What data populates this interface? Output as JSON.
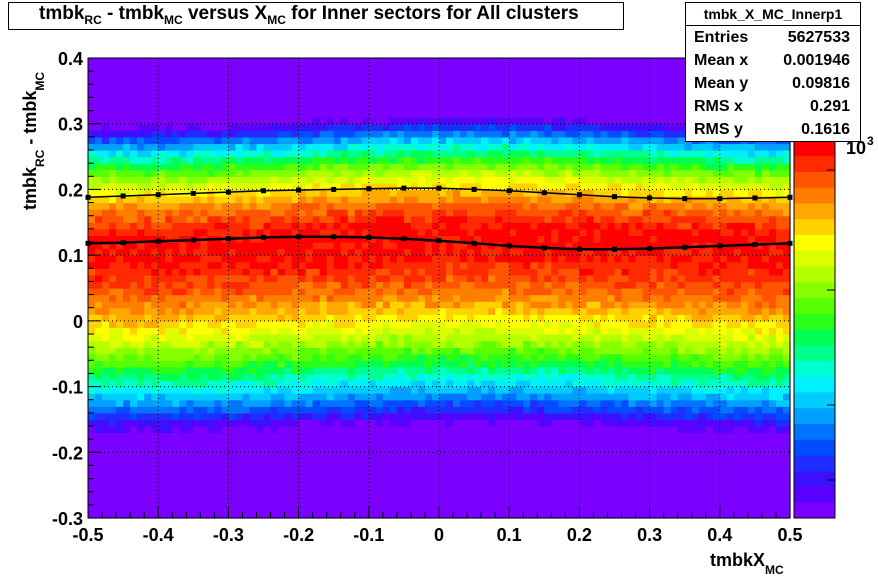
{
  "title": {
    "parts": [
      "tmbk",
      "RC",
      " - tmbk",
      "MC",
      " versus X",
      "MC",
      " for Inner sectors for All clusters"
    ]
  },
  "stats": {
    "name": "tmbk_X_MC_Innerp1",
    "rows": [
      {
        "key": "Entries",
        "value": "5627533"
      },
      {
        "key": "Mean x",
        "value": "0.001946"
      },
      {
        "key": "Mean y",
        "value": "0.09816"
      },
      {
        "key": "RMS x",
        "value": "0.291"
      },
      {
        "key": "RMS y",
        "value": "0.1616"
      }
    ]
  },
  "colorbar": {
    "label_base": "10",
    "label_exp": "3",
    "colors": [
      "#7b00ff",
      "#5a00ff",
      "#3c10ff",
      "#1f2eff",
      "#004cff",
      "#0073ff",
      "#00a0ff",
      "#00ccff",
      "#00f0ff",
      "#00ffd0",
      "#00ff8c",
      "#00ff50",
      "#2aff1a",
      "#58ff00",
      "#86ff00",
      "#b4ff00",
      "#dcff00",
      "#ffff00",
      "#ffd200",
      "#ffa800",
      "#ff7e00",
      "#ff5400",
      "#ff2a00",
      "#ff0000"
    ]
  },
  "chart_data": {
    "type": "heatmap",
    "title": "tmbk_RC - tmbk_MC versus X_MC for Inner sectors for All clusters",
    "xlabel": "tmbkX_MC",
    "ylabel": "tmbk_RC - tmbk_MC",
    "xlim": [
      -0.5,
      0.5
    ],
    "ylim": [
      -0.3,
      0.4
    ],
    "x_ticks": [
      "-0.5",
      "-0.4",
      "-0.3",
      "-0.2",
      "-0.1",
      "0",
      "0.1",
      "0.2",
      "0.3",
      "0.4",
      "0.5"
    ],
    "y_ticks": [
      "-0.3",
      "-0.2",
      "-0.1",
      "0",
      "0.1",
      "0.2",
      "0.3",
      "0.4"
    ],
    "grid": true,
    "z_scale": "log",
    "series": [
      {
        "name": "mean",
        "x": [
          -0.5,
          -0.45,
          -0.4,
          -0.35,
          -0.3,
          -0.25,
          -0.2,
          -0.15,
          -0.1,
          -0.05,
          0,
          0.05,
          0.1,
          0.15,
          0.2,
          0.25,
          0.3,
          0.35,
          0.4,
          0.45,
          0.5
        ],
        "y": [
          0.118,
          0.119,
          0.121,
          0.123,
          0.125,
          0.127,
          0.128,
          0.128,
          0.127,
          0.125,
          0.122,
          0.118,
          0.114,
          0.111,
          0.109,
          0.109,
          0.11,
          0.112,
          0.114,
          0.116,
          0.118
        ]
      },
      {
        "name": "rms",
        "x": [
          -0.5,
          -0.45,
          -0.4,
          -0.35,
          -0.3,
          -0.25,
          -0.2,
          -0.15,
          -0.1,
          -0.05,
          0,
          0.05,
          0.1,
          0.15,
          0.2,
          0.25,
          0.3,
          0.35,
          0.4,
          0.45,
          0.5
        ],
        "y": [
          0.188,
          0.19,
          0.192,
          0.194,
          0.196,
          0.198,
          0.199,
          0.2,
          0.201,
          0.202,
          0.202,
          0.2,
          0.198,
          0.195,
          0.192,
          0.189,
          0.187,
          0.186,
          0.186,
          0.187,
          0.188
        ]
      }
    ]
  }
}
